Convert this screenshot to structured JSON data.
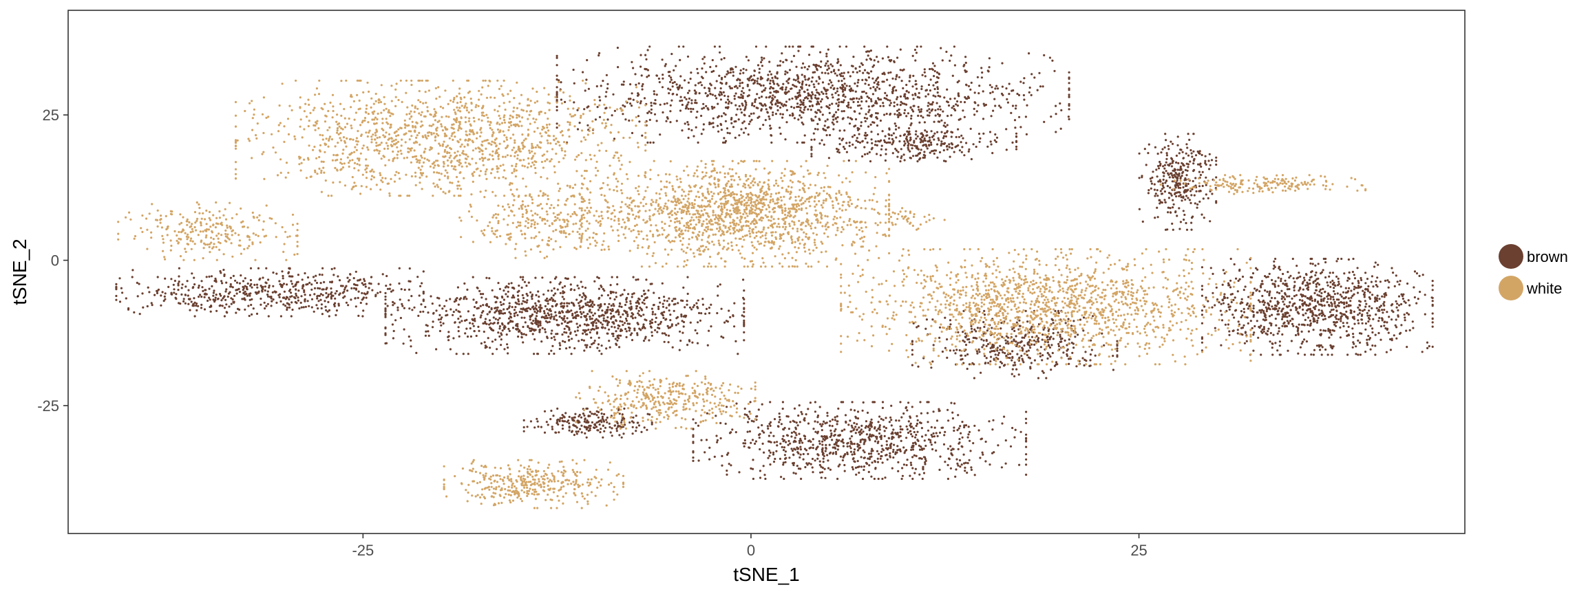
{
  "chart_data": {
    "type": "scatter",
    "title": "",
    "xlabel": "tSNE_1",
    "ylabel": "tSNE_2",
    "xlim": [
      -44,
      46
    ],
    "ylim": [
      -47,
      43
    ],
    "x_ticks": [
      -25,
      0,
      25
    ],
    "y_ticks": [
      -25,
      0,
      25
    ],
    "grid": false,
    "legend_position": "right",
    "series": [
      {
        "name": "brown",
        "color": "#6b4030",
        "clusters": [
          {
            "cx": 4,
            "cy": 28.5,
            "sx": 10,
            "sy": 5,
            "n": 1400
          },
          {
            "cx": 10.5,
            "cy": 20,
            "sx": 4,
            "sy": 1.8,
            "n": 260
          },
          {
            "cx": -12,
            "cy": -9.5,
            "sx": 7,
            "sy": 4,
            "n": 1100
          },
          {
            "cx": -31,
            "cy": -5.5,
            "sx": 6,
            "sy": 2.5,
            "n": 550
          },
          {
            "cx": 7,
            "cy": -31,
            "sx": 6.5,
            "sy": 4,
            "n": 850
          },
          {
            "cx": -10.5,
            "cy": -28,
            "sx": 2.5,
            "sy": 1.5,
            "n": 200
          },
          {
            "cx": 36.5,
            "cy": -8,
            "sx": 4.5,
            "sy": 5,
            "n": 950
          },
          {
            "cx": 27.5,
            "cy": 13.5,
            "sx": 1.5,
            "sy": 5,
            "n": 320
          },
          {
            "cx": 17,
            "cy": -14.5,
            "sx": 4,
            "sy": 3.5,
            "n": 380
          }
        ]
      },
      {
        "name": "white",
        "color": "#d3a565",
        "clusters": [
          {
            "cx": -20,
            "cy": 21,
            "sx": 8,
            "sy": 6,
            "n": 1300
          },
          {
            "cx": -35,
            "cy": 5,
            "sx": 3.5,
            "sy": 3,
            "n": 250
          },
          {
            "cx": -1,
            "cy": 8,
            "sx": 6,
            "sy": 5.5,
            "n": 1400
          },
          {
            "cx": -13,
            "cy": 7,
            "sx": 3.5,
            "sy": 4,
            "n": 300
          },
          {
            "cx": 19,
            "cy": -8,
            "sx": 8,
            "sy": 6,
            "n": 1450
          },
          {
            "cx": -14,
            "cy": -38.5,
            "sx": 3.5,
            "sy": 2.5,
            "n": 350
          },
          {
            "cx": -5.5,
            "cy": -24,
            "sx": 3.5,
            "sy": 3,
            "n": 350
          },
          {
            "cx": 33,
            "cy": 13,
            "sx": 4,
            "sy": 1,
            "n": 170
          },
          {
            "cx": 10,
            "cy": 7,
            "sx": 1.5,
            "sy": 1.2,
            "n": 40
          }
        ]
      }
    ]
  }
}
